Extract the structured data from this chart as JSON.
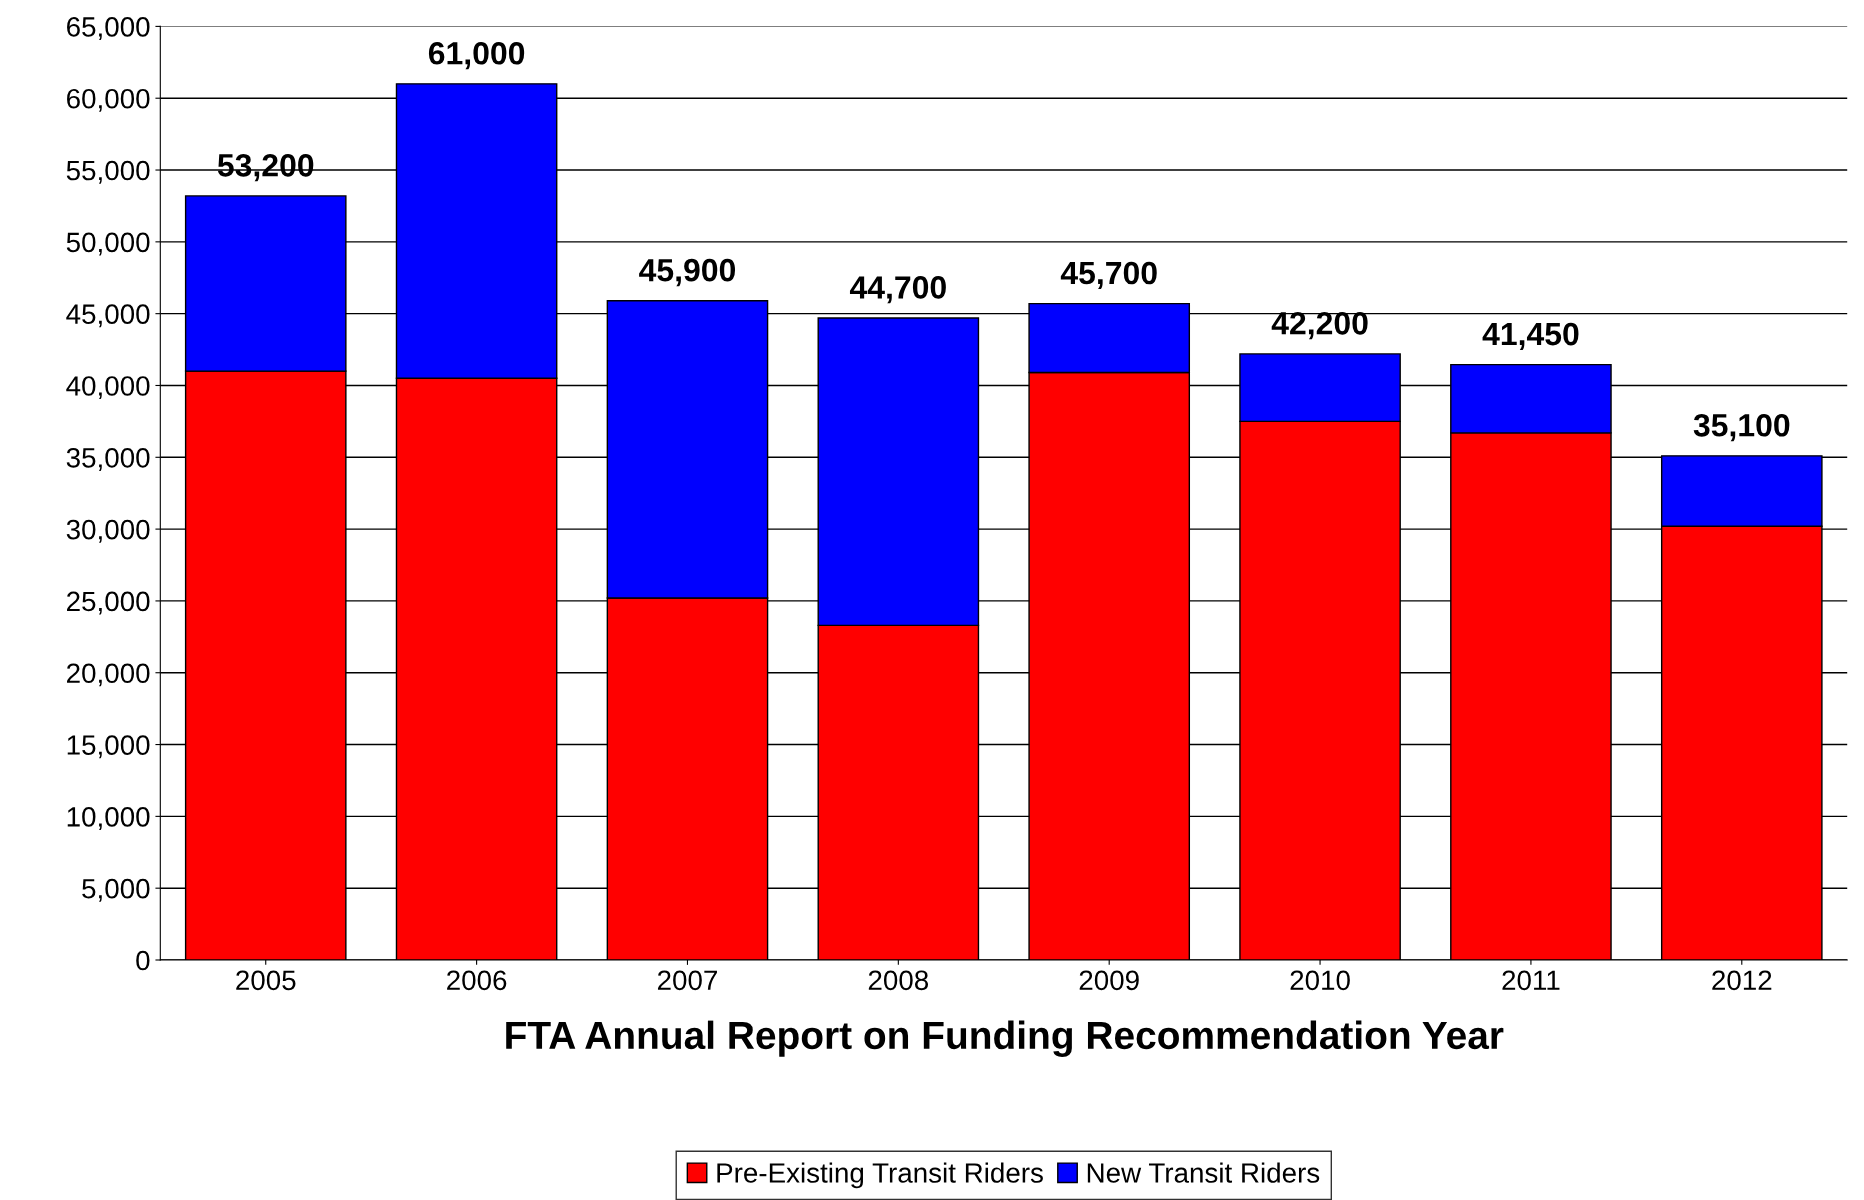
{
  "chart_data": {
    "type": "bar",
    "stacked": true,
    "xlabel": "FTA Annual Report on Funding Recommendation Year",
    "categories": [
      "2005",
      "2006",
      "2007",
      "2008",
      "2009",
      "2010",
      "2011",
      "2012"
    ],
    "series": [
      {
        "name": "Pre-Existing Transit Riders",
        "color": "#ff0000",
        "values": [
          41000,
          40500,
          25200,
          23300,
          40900,
          37500,
          36700,
          30200
        ]
      },
      {
        "name": "New Transit Riders",
        "color": "#0000ff",
        "values": [
          12200,
          20500,
          20700,
          21400,
          4800,
          4700,
          4750,
          4900
        ]
      }
    ],
    "totals": [
      "53,200",
      "61,000",
      "45,900",
      "44,700",
      "45,700",
      "42,200",
      "41,450",
      "35,100"
    ],
    "ylim": [
      0,
      65000
    ],
    "yticks": [
      {
        "value": 0,
        "label": "0"
      },
      {
        "value": 5000,
        "label": "5,000"
      },
      {
        "value": 10000,
        "label": "10,000"
      },
      {
        "value": 15000,
        "label": "15,000"
      },
      {
        "value": 20000,
        "label": "20,000"
      },
      {
        "value": 25000,
        "label": "25,000"
      },
      {
        "value": 30000,
        "label": "30,000"
      },
      {
        "value": 35000,
        "label": "35,000"
      },
      {
        "value": 40000,
        "label": "40,000"
      },
      {
        "value": 45000,
        "label": "45,000"
      },
      {
        "value": 50000,
        "label": "50,000"
      },
      {
        "value": 55000,
        "label": "55,000"
      },
      {
        "value": 60000,
        "label": "60,000"
      },
      {
        "value": 65000,
        "label": "65,000"
      }
    ],
    "grid": "y",
    "legend": "bottom"
  }
}
